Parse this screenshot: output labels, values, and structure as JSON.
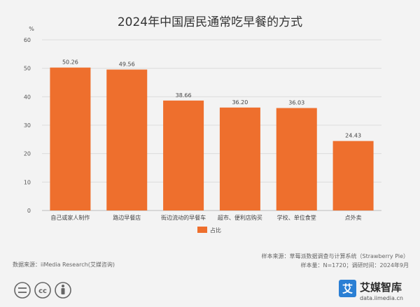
{
  "chart_data": {
    "type": "bar",
    "title": "2024年中国居民通常吃早餐的方式",
    "ylabel": "%",
    "ylim": [
      0,
      60
    ],
    "yticks": [
      0,
      10,
      20,
      30,
      40,
      50,
      60
    ],
    "categories": [
      "自己或家人制作",
      "路边早餐店",
      "街边流动的早餐车",
      "超市、便利店购买",
      "学校、单位食堂",
      "点外卖"
    ],
    "series": [
      {
        "name": "占比",
        "values": [
          50.26,
          49.56,
          38.66,
          36.2,
          36.03,
          24.43
        ]
      }
    ],
    "value_labels": [
      "50.26",
      "49.56",
      "38.66",
      "36.20",
      "36.03",
      "24.43"
    ],
    "bar_color": "#ee6f2d",
    "grid": true,
    "legend_position": "bottom-center"
  },
  "footer": {
    "source_left": "数据来源：iiMedia Research(艾媒咨询)",
    "source_sample": "样本来源：草莓派数据调查与计算系统（Strawberry Pie）",
    "sample_size": "样本量：N=1720；调研时间：2024年9月"
  },
  "license": {
    "icons": [
      "equals-icon",
      "cc-icon",
      "person-icon"
    ]
  },
  "logo": {
    "mark": "艾",
    "name": "艾媒智库",
    "url": "data.iimedia.cn",
    "color": "#2a7fd4"
  }
}
